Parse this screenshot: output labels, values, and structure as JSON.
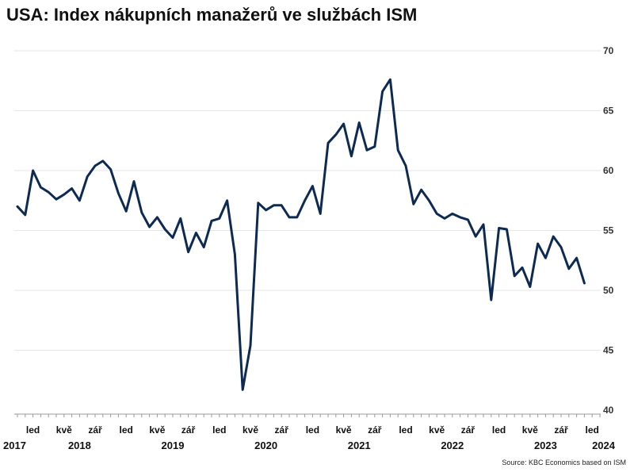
{
  "title": "USA: Index nákupních manažerů ve službách ISM",
  "source": "Source: KBC Economics based on ISM",
  "colors": {
    "line": "#0d2b52",
    "grid": "#e6e6e6",
    "axis": "#9a9a9a"
  },
  "chart_data": {
    "type": "line",
    "title": "USA: Index nákupních manažerů ve službách ISM",
    "ylim": [
      40,
      70
    ],
    "yticks": [
      40,
      45,
      50,
      55,
      60,
      65,
      70
    ],
    "y_axis_side": "right",
    "grid": true,
    "month_ticks": [
      {
        "index": 2,
        "label": "led"
      },
      {
        "index": 6,
        "label": "kvě"
      },
      {
        "index": 10,
        "label": "zář"
      },
      {
        "index": 14,
        "label": "led"
      },
      {
        "index": 18,
        "label": "kvě"
      },
      {
        "index": 22,
        "label": "zář"
      },
      {
        "index": 26,
        "label": "led"
      },
      {
        "index": 30,
        "label": "kvě"
      },
      {
        "index": 34,
        "label": "zář"
      },
      {
        "index": 38,
        "label": "led"
      },
      {
        "index": 42,
        "label": "kvě"
      },
      {
        "index": 46,
        "label": "zář"
      },
      {
        "index": 50,
        "label": "led"
      },
      {
        "index": 54,
        "label": "kvě"
      },
      {
        "index": 58,
        "label": "zář"
      },
      {
        "index": 62,
        "label": "led"
      },
      {
        "index": 66,
        "label": "kvě"
      },
      {
        "index": 70,
        "label": "zář"
      },
      {
        "index": 74,
        "label": "led"
      }
    ],
    "year_labels": [
      {
        "index": 0,
        "label": "2017"
      },
      {
        "index": 8,
        "label": "2018"
      },
      {
        "index": 20,
        "label": "2019"
      },
      {
        "index": 32,
        "label": "2020"
      },
      {
        "index": 44,
        "label": "2021"
      },
      {
        "index": 56,
        "label": "2022"
      },
      {
        "index": 68,
        "label": "2023"
      },
      {
        "index": 76,
        "label": "2024"
      }
    ],
    "series": [
      {
        "values": [
          57.0,
          56.3,
          60.0,
          58.6,
          58.2,
          57.6,
          58.0,
          58.5,
          57.5,
          59.5,
          60.4,
          60.8,
          60.1,
          58.1,
          56.6,
          59.1,
          56.5,
          55.3,
          56.1,
          55.1,
          54.4,
          56.0,
          53.2,
          54.8,
          53.6,
          55.8,
          56.0,
          57.5,
          53.0,
          41.7,
          45.4,
          57.3,
          56.7,
          57.1,
          57.1,
          56.1,
          56.1,
          57.5,
          58.7,
          56.4,
          62.3,
          63.0,
          63.9,
          61.2,
          64.0,
          61.7,
          62.0,
          66.6,
          67.6,
          61.7,
          60.4,
          57.2,
          58.4,
          57.5,
          56.4,
          56.0,
          56.4,
          56.1,
          55.9,
          54.5,
          55.5,
          49.2,
          55.2,
          55.1,
          51.2,
          51.9,
          50.3,
          53.9,
          52.7,
          54.5,
          53.6,
          51.8,
          52.7,
          50.6
        ]
      }
    ]
  }
}
